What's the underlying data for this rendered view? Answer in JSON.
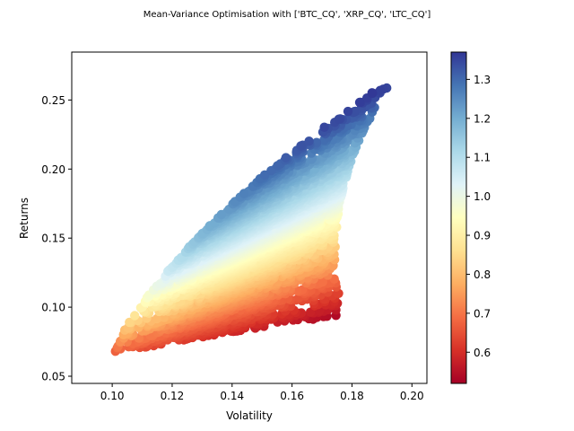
{
  "chart_data": {
    "type": "scatter",
    "title": "Mean-Variance Optimisation with ['BTC_CQ', 'XRP_CQ', 'LTC_CQ']",
    "xlabel": "Volatility",
    "ylabel": "Returns",
    "xlim": [
      0.0865,
      0.205
    ],
    "ylim": [
      0.0448,
      0.2847
    ],
    "x_ticks": [
      "0.10",
      "0.12",
      "0.14",
      "0.16",
      "0.18",
      "0.20"
    ],
    "y_ticks": [
      "0.05",
      "0.10",
      "0.15",
      "0.20",
      "0.25"
    ],
    "colorbar": {
      "label": "",
      "range": [
        0.52,
        1.37
      ],
      "ticks": [
        "0.6",
        "0.7",
        "0.8",
        "0.9",
        "1.0",
        "1.1",
        "1.2",
        "1.3"
      ],
      "colormap": "RdYlBu"
    },
    "color_variable": "return / volatility ratio",
    "assets": [
      "BTC_CQ",
      "XRP_CQ",
      "LTC_CQ"
    ],
    "frontier_outline": {
      "efficient_upper": [
        {
          "x": 0.099,
          "y": 0.065
        },
        {
          "x": 0.103,
          "y": 0.088
        },
        {
          "x": 0.108,
          "y": 0.105
        },
        {
          "x": 0.114,
          "y": 0.121
        },
        {
          "x": 0.122,
          "y": 0.14
        },
        {
          "x": 0.132,
          "y": 0.16
        },
        {
          "x": 0.143,
          "y": 0.18
        },
        {
          "x": 0.155,
          "y": 0.2
        },
        {
          "x": 0.168,
          "y": 0.22
        },
        {
          "x": 0.177,
          "y": 0.235
        },
        {
          "x": 0.186,
          "y": 0.25
        },
        {
          "x": 0.194,
          "y": 0.266
        }
      ],
      "btc_xrp_edge": [
        {
          "x": 0.194,
          "y": 0.266
        },
        {
          "x": 0.186,
          "y": 0.248
        },
        {
          "x": 0.18,
          "y": 0.232
        },
        {
          "x": 0.176,
          "y": 0.215
        },
        {
          "x": 0.173,
          "y": 0.198
        },
        {
          "x": 0.172,
          "y": 0.18
        },
        {
          "x": 0.172,
          "y": 0.163
        },
        {
          "x": 0.173,
          "y": 0.146
        },
        {
          "x": 0.174,
          "y": 0.128
        },
        {
          "x": 0.176,
          "y": 0.111
        },
        {
          "x": 0.177,
          "y": 0.094
        }
      ],
      "lower_edge": [
        {
          "x": 0.177,
          "y": 0.094
        },
        {
          "x": 0.168,
          "y": 0.089
        },
        {
          "x": 0.156,
          "y": 0.085
        },
        {
          "x": 0.144,
          "y": 0.082
        },
        {
          "x": 0.132,
          "y": 0.078
        },
        {
          "x": 0.12,
          "y": 0.074
        },
        {
          "x": 0.11,
          "y": 0.07
        },
        {
          "x": 0.103,
          "y": 0.067
        },
        {
          "x": 0.099,
          "y": 0.065
        }
      ]
    },
    "anchor_portfolios": [
      {
        "name": "BTC_CQ",
        "x": 0.099,
        "y": 0.065,
        "ratio": 0.66
      },
      {
        "name": "XRP_CQ",
        "x": 0.194,
        "y": 0.266,
        "ratio": 1.37
      },
      {
        "name": "LTC_CQ",
        "x": 0.177,
        "y": 0.094,
        "ratio": 0.53
      }
    ],
    "point_count": 5000,
    "grid": false,
    "legend": false
  }
}
